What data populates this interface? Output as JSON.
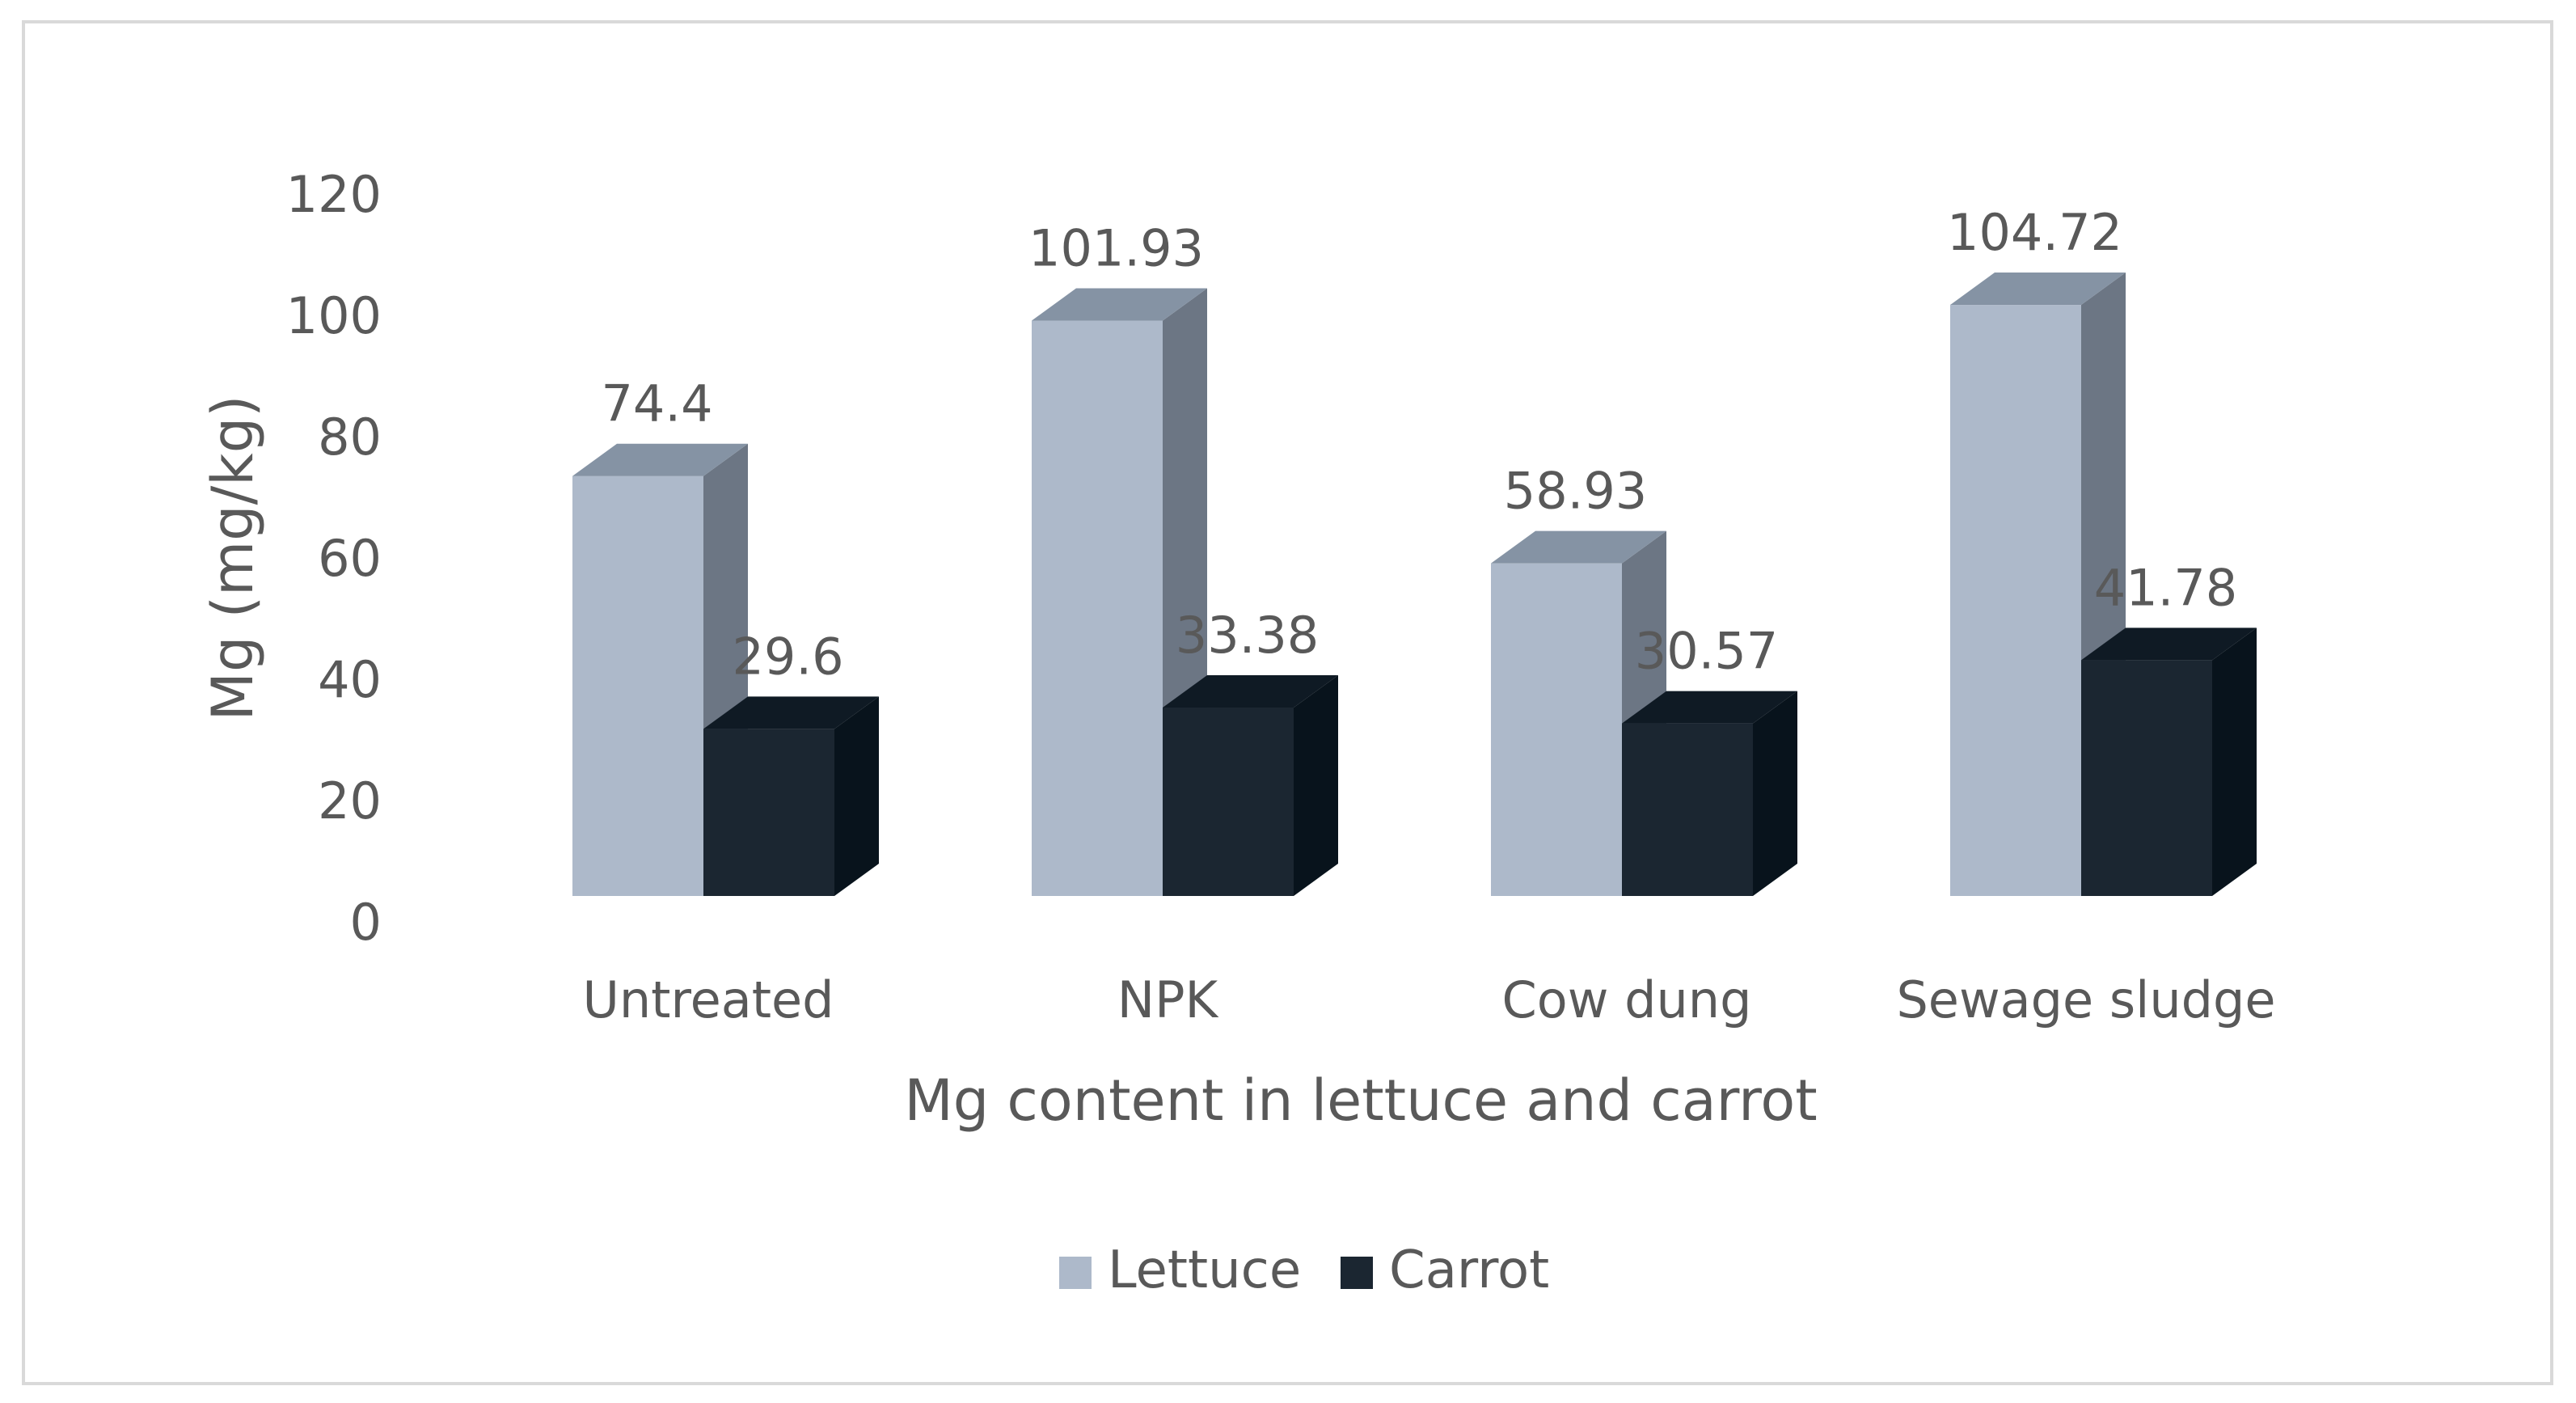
{
  "chart_data": {
    "type": "bar",
    "style": "3d-clustered-column",
    "title": "",
    "xlabel": "Mg content in lettuce and carrot",
    "ylabel": "Mg (mg/kg)",
    "categories": [
      "Untreated",
      "NPK",
      "Cow dung",
      "Sewage sludge"
    ],
    "series": [
      {
        "name": "Lettuce",
        "values": [
          74.4,
          101.93,
          58.93,
          104.72
        ],
        "labels": [
          "74.4",
          "101.93",
          "58.93",
          "104.72"
        ],
        "color": "#adb9ca"
      },
      {
        "name": "Carrot",
        "values": [
          29.6,
          33.38,
          30.57,
          41.78
        ],
        "labels": [
          "29.6",
          "33.38",
          "30.57",
          "41.78"
        ],
        "color": "#1b2631"
      }
    ],
    "ylim": [
      0,
      120
    ],
    "yticks": [
      0,
      20,
      40,
      60,
      80,
      100,
      120
    ],
    "ytick_labels": [
      "0",
      "20",
      "40",
      "60",
      "80",
      "100",
      "120"
    ],
    "grid": false,
    "legend_position": "bottom"
  }
}
